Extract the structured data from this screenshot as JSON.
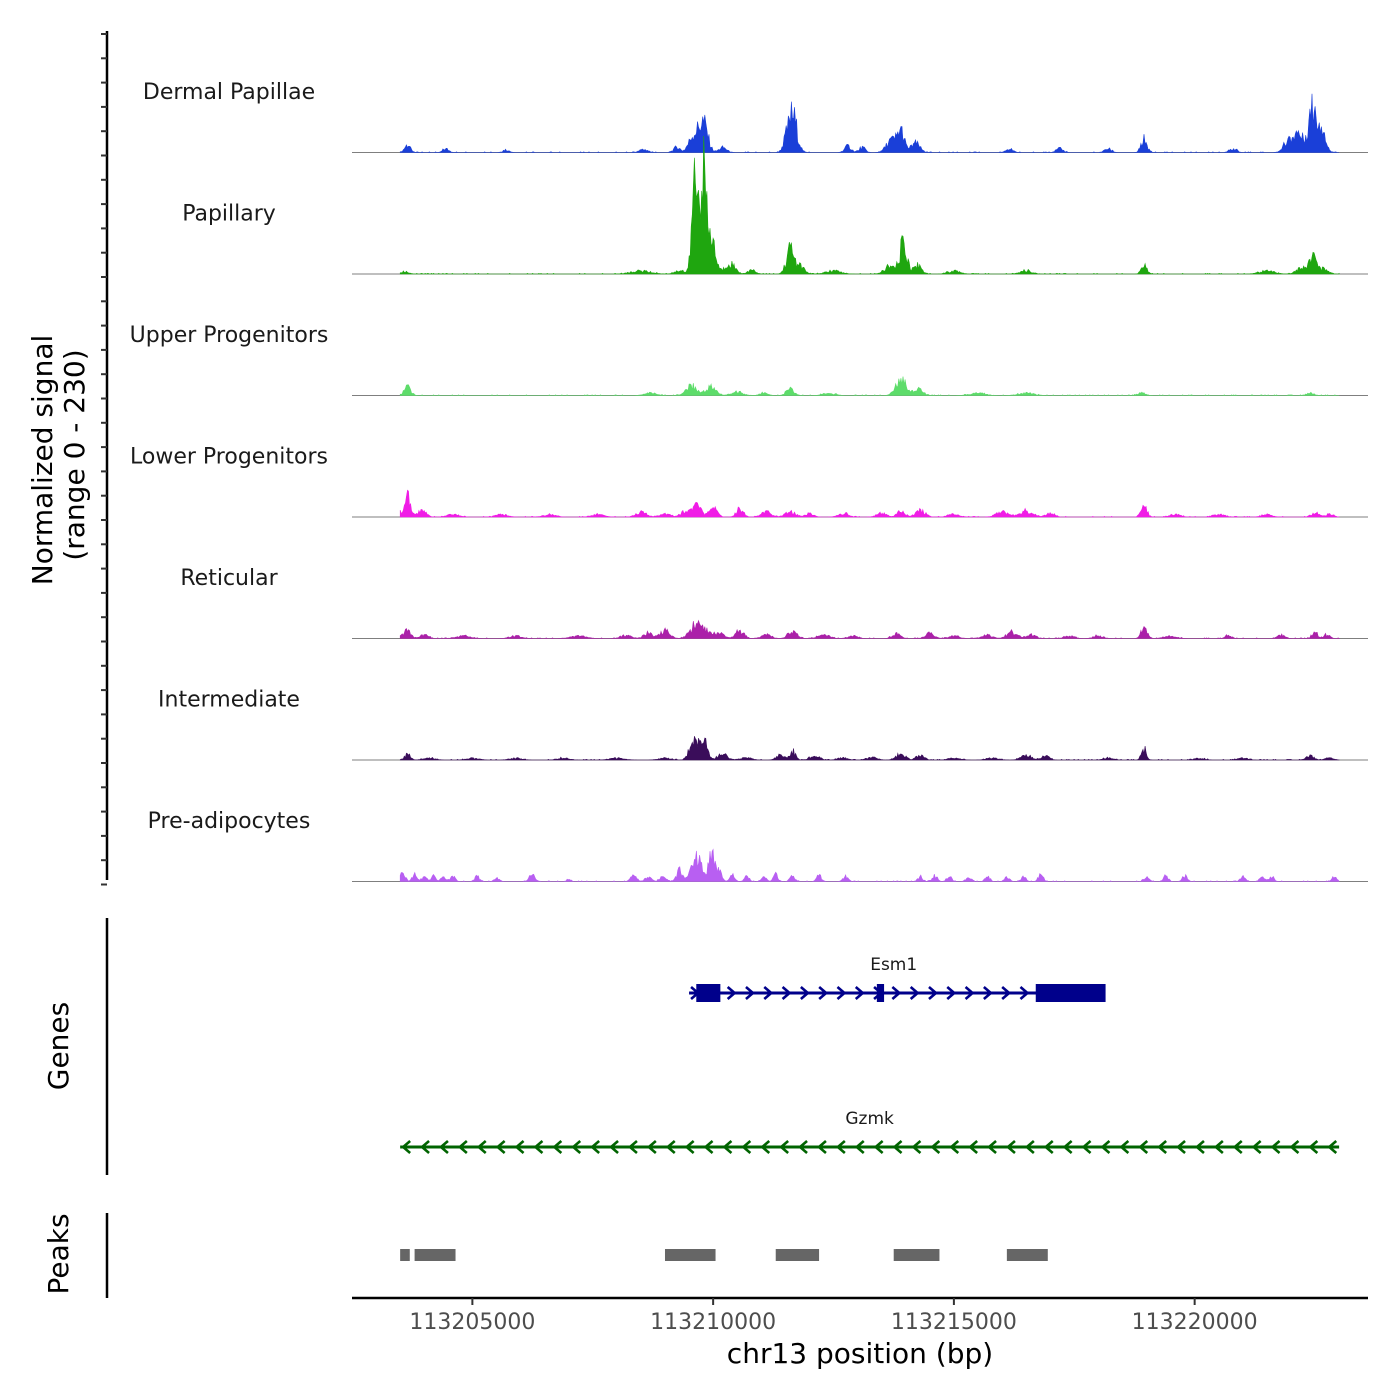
{
  "chart_data": {
    "type": "coverage",
    "xlabel": "chr13 position (bp)",
    "ylabel_line1": "Normalized signal",
    "ylabel_line2": "(range 0 - 230)",
    "y_range": [
      0,
      230
    ],
    "x_range": [
      113202500,
      113223600
    ],
    "x_ticks": [
      113205000,
      113210000,
      113215000,
      113220000
    ],
    "x_tick_labels": [
      "113205000",
      "113210000",
      "113215000",
      "113220000"
    ],
    "data_start": 113203500,
    "data_end": 113223000,
    "tracks": [
      {
        "name": "Dermal Papillae",
        "color": "#1a3fd8",
        "peaks": [
          [
            113203650,
            12,
            60
          ],
          [
            113204450,
            6,
            60
          ],
          [
            113205700,
            4,
            60
          ],
          [
            113208550,
            5,
            80
          ],
          [
            113209250,
            9,
            60
          ],
          [
            113209600,
            28,
            100
          ],
          [
            113209800,
            46,
            90
          ],
          [
            113210200,
            8,
            80
          ],
          [
            113211500,
            12,
            60
          ],
          [
            113211650,
            62,
            90
          ],
          [
            113212800,
            10,
            70
          ],
          [
            113213100,
            8,
            60
          ],
          [
            113213700,
            20,
            100
          ],
          [
            113213900,
            34,
            70
          ],
          [
            113214200,
            15,
            90
          ],
          [
            113216150,
            6,
            70
          ],
          [
            113217200,
            6,
            70
          ],
          [
            113218200,
            6,
            70
          ],
          [
            113218950,
            21,
            60
          ],
          [
            113220800,
            6,
            70
          ],
          [
            113221950,
            18,
            100
          ],
          [
            113222150,
            30,
            90
          ],
          [
            113222450,
            72,
            90
          ],
          [
            113222650,
            40,
            70
          ]
        ]
      },
      {
        "name": "Papillary",
        "color": "#1fa60f",
        "peaks": [
          [
            113203600,
            4,
            80
          ],
          [
            113208500,
            5,
            200
          ],
          [
            113209300,
            6,
            90
          ],
          [
            113209620,
            150,
            60
          ],
          [
            113209780,
            170,
            60
          ],
          [
            113209950,
            60,
            90
          ],
          [
            113210350,
            18,
            100
          ],
          [
            113210800,
            6,
            80
          ],
          [
            113211600,
            40,
            80
          ],
          [
            113211800,
            12,
            90
          ],
          [
            113212500,
            5,
            150
          ],
          [
            113213650,
            12,
            100
          ],
          [
            113213950,
            48,
            80
          ],
          [
            113214250,
            14,
            80
          ],
          [
            113215000,
            5,
            120
          ],
          [
            113216500,
            5,
            120
          ],
          [
            113218950,
            12,
            60
          ],
          [
            113221500,
            5,
            150
          ],
          [
            113222200,
            10,
            100
          ],
          [
            113222450,
            28,
            80
          ],
          [
            113222700,
            8,
            80
          ]
        ]
      },
      {
        "name": "Upper Progenitors",
        "color": "#5ddc6a",
        "peaks": [
          [
            113203350,
            4,
            80
          ],
          [
            113203650,
            14,
            70
          ],
          [
            113208700,
            4,
            120
          ],
          [
            113209550,
            16,
            110
          ],
          [
            113209950,
            14,
            100
          ],
          [
            113210500,
            6,
            120
          ],
          [
            113211050,
            4,
            80
          ],
          [
            113211600,
            10,
            80
          ],
          [
            113212400,
            4,
            120
          ],
          [
            113213800,
            10,
            80
          ],
          [
            113213950,
            26,
            80
          ],
          [
            113214250,
            10,
            100
          ],
          [
            113215500,
            4,
            150
          ],
          [
            113216500,
            4,
            150
          ],
          [
            113218900,
            4,
            80
          ],
          [
            113222400,
            4,
            80
          ]
        ]
      },
      {
        "name": "Lower Progenitors",
        "color": "#f01ce6",
        "peaks": [
          [
            113203400,
            12,
            100
          ],
          [
            113203650,
            34,
            60
          ],
          [
            113203950,
            12,
            80
          ],
          [
            113204600,
            4,
            120
          ],
          [
            113205600,
            4,
            120
          ],
          [
            113206600,
            4,
            120
          ],
          [
            113207600,
            4,
            120
          ],
          [
            113208500,
            8,
            100
          ],
          [
            113209000,
            6,
            100
          ],
          [
            113209400,
            8,
            90
          ],
          [
            113209650,
            18,
            100
          ],
          [
            113210000,
            14,
            80
          ],
          [
            113210550,
            14,
            70
          ],
          [
            113211100,
            8,
            100
          ],
          [
            113211600,
            10,
            100
          ],
          [
            113212000,
            6,
            80
          ],
          [
            113212700,
            6,
            100
          ],
          [
            113213500,
            6,
            100
          ],
          [
            113213900,
            8,
            80
          ],
          [
            113214300,
            10,
            100
          ],
          [
            113215000,
            4,
            120
          ],
          [
            113216000,
            8,
            120
          ],
          [
            113216500,
            10,
            140
          ],
          [
            113217000,
            6,
            80
          ],
          [
            113218950,
            18,
            60
          ],
          [
            113219600,
            4,
            100
          ],
          [
            113220500,
            4,
            120
          ],
          [
            113221500,
            4,
            100
          ],
          [
            113222500,
            6,
            80
          ],
          [
            113222800,
            4,
            80
          ]
        ]
      },
      {
        "name": "Reticular",
        "color": "#ab20a9",
        "peaks": [
          [
            113203400,
            6,
            100
          ],
          [
            113203650,
            20,
            60
          ],
          [
            113204000,
            6,
            80
          ],
          [
            113204800,
            4,
            140
          ],
          [
            113205900,
            4,
            120
          ],
          [
            113207200,
            4,
            150
          ],
          [
            113208200,
            6,
            100
          ],
          [
            113208650,
            9,
            90
          ],
          [
            113209000,
            14,
            90
          ],
          [
            113209700,
            28,
            140
          ],
          [
            113210100,
            10,
            100
          ],
          [
            113210550,
            12,
            90
          ],
          [
            113211100,
            6,
            100
          ],
          [
            113211650,
            10,
            100
          ],
          [
            113212300,
            6,
            110
          ],
          [
            113212900,
            4,
            100
          ],
          [
            113213800,
            8,
            80
          ],
          [
            113214500,
            8,
            90
          ],
          [
            113215000,
            4,
            100
          ],
          [
            113215700,
            5,
            100
          ],
          [
            113216200,
            10,
            100
          ],
          [
            113216600,
            6,
            100
          ],
          [
            113217400,
            4,
            100
          ],
          [
            113218000,
            4,
            100
          ],
          [
            113218950,
            20,
            60
          ],
          [
            113219500,
            4,
            120
          ],
          [
            113220700,
            6,
            60
          ],
          [
            113221800,
            6,
            70
          ],
          [
            113222500,
            10,
            60
          ],
          [
            113222750,
            6,
            60
          ]
        ]
      },
      {
        "name": "Intermediate",
        "color": "#3a0d5a",
        "peaks": [
          [
            113203300,
            4,
            80
          ],
          [
            113203650,
            10,
            60
          ],
          [
            113204100,
            3,
            120
          ],
          [
            113205000,
            3,
            120
          ],
          [
            113205900,
            3,
            120
          ],
          [
            113206900,
            3,
            120
          ],
          [
            113208000,
            3,
            150
          ],
          [
            113209000,
            3,
            120
          ],
          [
            113209600,
            40,
            80
          ],
          [
            113209800,
            34,
            70
          ],
          [
            113210200,
            10,
            100
          ],
          [
            113210700,
            4,
            100
          ],
          [
            113211400,
            8,
            80
          ],
          [
            113211650,
            14,
            60
          ],
          [
            113212100,
            6,
            100
          ],
          [
            113212700,
            4,
            100
          ],
          [
            113213300,
            4,
            100
          ],
          [
            113213900,
            10,
            90
          ],
          [
            113214300,
            8,
            80
          ],
          [
            113215000,
            3,
            120
          ],
          [
            113215800,
            3,
            120
          ],
          [
            113216500,
            8,
            100
          ],
          [
            113216900,
            6,
            80
          ],
          [
            113218200,
            3,
            100
          ],
          [
            113218950,
            18,
            50
          ],
          [
            113220100,
            3,
            100
          ],
          [
            113221000,
            3,
            100
          ],
          [
            113222400,
            6,
            80
          ],
          [
            113222800,
            3,
            80
          ]
        ]
      },
      {
        "name": "Pre-adipocytes",
        "color": "#b85ff2",
        "peaks": [
          [
            113203550,
            16,
            50
          ],
          [
            113203800,
            10,
            50
          ],
          [
            113204000,
            8,
            50
          ],
          [
            113204200,
            8,
            50
          ],
          [
            113204400,
            8,
            50
          ],
          [
            113204600,
            8,
            50
          ],
          [
            113205100,
            8,
            50
          ],
          [
            113205500,
            6,
            50
          ],
          [
            113206250,
            12,
            60
          ],
          [
            113207000,
            4,
            40
          ],
          [
            113208350,
            10,
            60
          ],
          [
            113208650,
            8,
            60
          ],
          [
            113208950,
            10,
            60
          ],
          [
            113209300,
            18,
            60
          ],
          [
            113209550,
            26,
            60
          ],
          [
            113209700,
            40,
            60
          ],
          [
            113209950,
            46,
            60
          ],
          [
            113210100,
            22,
            60
          ],
          [
            113210400,
            10,
            50
          ],
          [
            113210700,
            8,
            50
          ],
          [
            113211050,
            10,
            50
          ],
          [
            113211300,
            10,
            50
          ],
          [
            113211650,
            8,
            50
          ],
          [
            113212200,
            10,
            50
          ],
          [
            113212750,
            8,
            50
          ],
          [
            113214300,
            8,
            50
          ],
          [
            113214600,
            10,
            50
          ],
          [
            113214900,
            8,
            50
          ],
          [
            113215300,
            8,
            50
          ],
          [
            113215700,
            8,
            50
          ],
          [
            113216100,
            8,
            50
          ],
          [
            113216450,
            8,
            50
          ],
          [
            113216800,
            10,
            50
          ],
          [
            113219000,
            8,
            50
          ],
          [
            113219400,
            8,
            50
          ],
          [
            113219800,
            10,
            50
          ],
          [
            113221000,
            8,
            50
          ],
          [
            113221400,
            8,
            50
          ],
          [
            113221600,
            8,
            50
          ],
          [
            113222900,
            6,
            50
          ]
        ]
      }
    ],
    "genes": [
      {
        "name": "Esm1",
        "strand": "+",
        "start": 113209500,
        "end": 113218000,
        "color": "#00008b",
        "exons": [
          [
            113209650,
            113210150
          ],
          [
            113213400,
            113213550
          ],
          [
            113216700,
            113218150
          ]
        ]
      },
      {
        "name": "Gzmk",
        "strand": "-",
        "start": 113203500,
        "end": 113223000,
        "color": "#006400",
        "exons": []
      }
    ],
    "peaks_track": {
      "color": "#666666",
      "regions": [
        [
          113203500,
          113203700
        ],
        [
          113203800,
          113204650
        ],
        [
          113209000,
          113210050
        ],
        [
          113211300,
          113212200
        ],
        [
          113213750,
          113214700
        ],
        [
          113216100,
          113216950
        ]
      ]
    },
    "panels": [
      "Genes",
      "Peaks"
    ]
  }
}
